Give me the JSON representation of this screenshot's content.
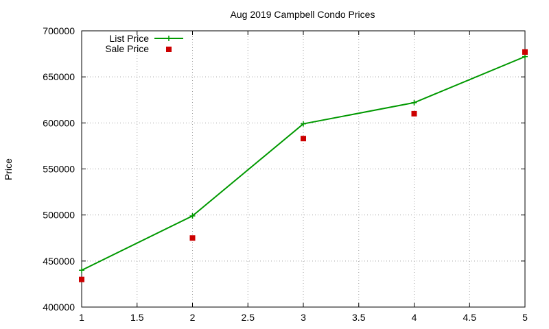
{
  "chart_data": {
    "type": "line",
    "title": "Aug 2019 Campbell Condo Prices",
    "xlabel": "",
    "ylabel": "Price",
    "xlim": [
      1,
      5
    ],
    "ylim": [
      400000,
      700000
    ],
    "x_ticks": [
      "1",
      "1.5",
      "2",
      "2.5",
      "3",
      "3.5",
      "4",
      "4.5",
      "5"
    ],
    "y_ticks": [
      "400000",
      "450000",
      "500000",
      "550000",
      "600000",
      "650000",
      "700000"
    ],
    "x_tick_values": [
      1,
      1.5,
      2,
      2.5,
      3,
      3.5,
      4,
      4.5,
      5
    ],
    "y_tick_values": [
      400000,
      450000,
      500000,
      550000,
      600000,
      650000,
      700000
    ],
    "grid": true,
    "legend_position": "top-left",
    "series": [
      {
        "name": "List Price",
        "style": "line-with-plus-markers",
        "color": "#009900",
        "x": [
          1,
          2,
          3,
          4,
          5
        ],
        "values": [
          440000,
          499000,
          599000,
          622000,
          672000
        ]
      },
      {
        "name": "Sale Price",
        "style": "square-points",
        "color": "#cc0000",
        "x": [
          1,
          2,
          3,
          4,
          5
        ],
        "values": [
          430000,
          475000,
          583000,
          610000,
          677000
        ]
      }
    ]
  }
}
